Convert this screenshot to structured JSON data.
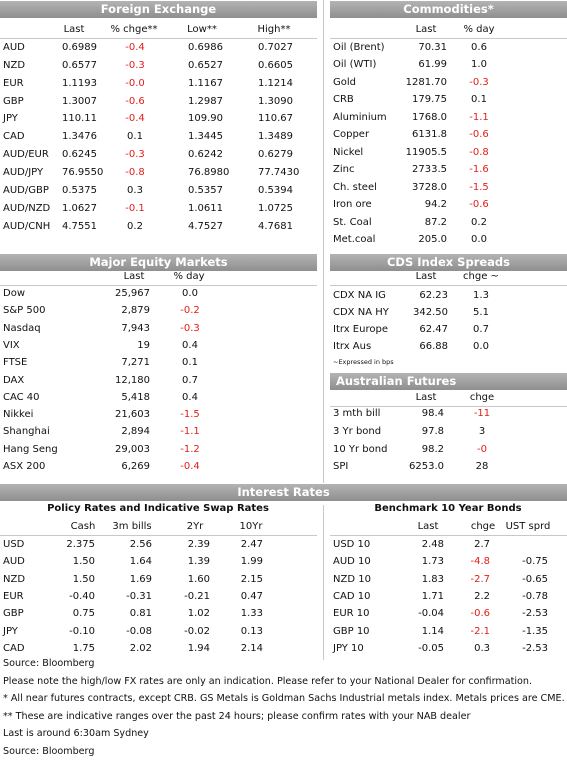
{
  "foreign_exchange": {
    "title": "Foreign Exchange",
    "columns": [
      "Last",
      "% chge**",
      "Low**",
      "High**"
    ],
    "rows": [
      [
        "AUD",
        "0.6989",
        "-0.4",
        "0.6986",
        "0.7027"
      ],
      [
        "NZD",
        "0.6577",
        "-0.3",
        "0.6527",
        "0.6605"
      ],
      [
        "EUR",
        "1.1193",
        "-0.0",
        "1.1167",
        "1.1214"
      ],
      [
        "GBP",
        "1.3007",
        "-0.6",
        "1.2987",
        "1.3090"
      ],
      [
        "JPY",
        "110.11",
        "-0.4",
        "109.90",
        "110.67"
      ],
      [
        "CAD",
        "1.3476",
        "0.1",
        "1.3445",
        "1.3489"
      ],
      [
        "AUD/EUR",
        "0.6245",
        "-0.3",
        "0.6242",
        "0.6279"
      ],
      [
        "AUD/JPY",
        "76.9550",
        "-0.8",
        "76.8980",
        "77.7430"
      ],
      [
        "AUD/GBP",
        "0.5375",
        "0.3",
        "0.5357",
        "0.5394"
      ],
      [
        "AUD/NZD",
        "1.0627",
        "-0.1",
        "1.0611",
        "1.0725"
      ],
      [
        "AUD/CNH",
        "4.7551",
        "0.2",
        "4.7527",
        "4.7681"
      ]
    ]
  },
  "commodities": {
    "title": "Commodities*",
    "columns": [
      "Last",
      "% day"
    ],
    "rows": [
      [
        "Oil (Brent)",
        "70.31",
        "0.6"
      ],
      [
        "Oil (WTI)",
        "61.99",
        "1.0"
      ],
      [
        "Gold",
        "1281.70",
        "-0.3"
      ],
      [
        "CRB",
        "179.75",
        "0.1"
      ],
      [
        "Aluminium",
        "1768.0",
        "-1.1"
      ],
      [
        "Copper",
        "6131.8",
        "-0.6"
      ],
      [
        "Nickel",
        "11905.5",
        "-0.8"
      ],
      [
        "Zinc",
        "2733.5",
        "-1.6"
      ],
      [
        "Ch. steel",
        "3728.0",
        "-1.5"
      ],
      [
        "Iron ore",
        "94.2",
        "-0.6"
      ],
      [
        "St. Coal",
        "87.2",
        "0.2"
      ],
      [
        "Met.coal",
        "205.0",
        "0.0"
      ]
    ]
  },
  "equity_markets": {
    "title": "Major Equity Markets",
    "columns": [
      "Last",
      "% day"
    ],
    "rows": [
      [
        "Dow",
        "25,967",
        "0.0"
      ],
      [
        "S&P 500",
        "2,879",
        "-0.2"
      ],
      [
        "Nasdaq",
        "7,943",
        "-0.3"
      ],
      [
        "VIX",
        "19",
        "0.4"
      ],
      [
        "FTSE",
        "7,271",
        "0.1"
      ],
      [
        "DAX",
        "12,180",
        "0.7"
      ],
      [
        "CAC 40",
        "5,418",
        "0.4"
      ],
      [
        "Nikkei",
        "21,603",
        "-1.5"
      ],
      [
        "Shanghai",
        "2,894",
        "-1.1"
      ],
      [
        "Hang Seng",
        "29,003",
        "-1.2"
      ],
      [
        "ASX 200",
        "6,269",
        "-0.4"
      ]
    ]
  },
  "cds_spreads": {
    "title": "CDS Index Spreads",
    "columns": [
      "Last",
      "chge ~"
    ],
    "rows": [
      [
        "CDX NA IG",
        "62.23",
        "1.3"
      ],
      [
        "CDX NA HY",
        "342.50",
        "5.1"
      ],
      [
        "Itrx Europe",
        "62.47",
        "0.7"
      ],
      [
        "Itrx Aus",
        "66.88",
        "0.0"
      ]
    ],
    "note": "~Expressed in bps"
  },
  "australian_futures": {
    "title": "Australian Futures",
    "columns": [
      "Last",
      "chge"
    ],
    "rows": [
      [
        "3 mth bill",
        "98.4",
        "-11"
      ],
      [
        "3 Yr bond",
        "97.8",
        "3"
      ],
      [
        "10 Yr bond",
        "98.2",
        "-0"
      ],
      [
        "SPI",
        "6253.0",
        "28"
      ]
    ]
  },
  "interest_rates": {
    "title": "Interest Rates",
    "policy_rates": {
      "title": "Policy Rates and Indicative Swap Rates",
      "columns": [
        "Cash",
        "3m bills",
        "2Yr",
        "10Yr"
      ],
      "rows": [
        [
          "USD",
          "2.375",
          "2.56",
          "2.39",
          "2.47"
        ],
        [
          "AUD",
          "1.50",
          "1.64",
          "1.39",
          "1.99"
        ],
        [
          "NZD",
          "1.50",
          "1.69",
          "1.60",
          "2.15"
        ],
        [
          "EUR",
          "-0.40",
          "-0.31",
          "-0.21",
          "0.47"
        ],
        [
          "GBP",
          "0.75",
          "0.81",
          "1.02",
          "1.33"
        ],
        [
          "JPY",
          "-0.10",
          "-0.08",
          "-0.02",
          "0.13"
        ],
        [
          "CAD",
          "1.75",
          "2.02",
          "1.94",
          "2.14"
        ]
      ]
    },
    "benchmark_bonds": {
      "title": "Benchmark 10 Year Bonds",
      "columns": [
        "Last",
        "chge",
        "UST sprd"
      ],
      "rows": [
        [
          "USD 10",
          "2.48",
          "2.7",
          null
        ],
        [
          "AUD 10",
          "1.73",
          "-4.8",
          "-0.75"
        ],
        [
          "NZD 10",
          "1.83",
          "-2.7",
          "-0.65"
        ],
        [
          "CAD 10",
          "1.71",
          "2.2",
          "-0.78"
        ],
        [
          "EUR 10",
          "-0.04",
          "-0.6",
          "-2.53"
        ],
        [
          "GBP 10",
          "1.14",
          "-2.1",
          "-1.35"
        ],
        [
          "JPY 10",
          "-0.05",
          "0.3",
          "-2.53"
        ]
      ]
    }
  },
  "notes": [
    "Source: Bloomberg",
    "Please note the high/low FX rates are only an indication. Please refer to your National Dealer for confirmation.",
    "* All near futures contracts, except CRB.  GS Metals is Goldman Sachs Industrial metals index.  Metals prices are CME.",
    "** These are indicative ranges over the past 24 hours; please confirm rates with your NAB dealer",
    "Last is around 6:30am Sydney",
    "Source: Bloomberg"
  ]
}
